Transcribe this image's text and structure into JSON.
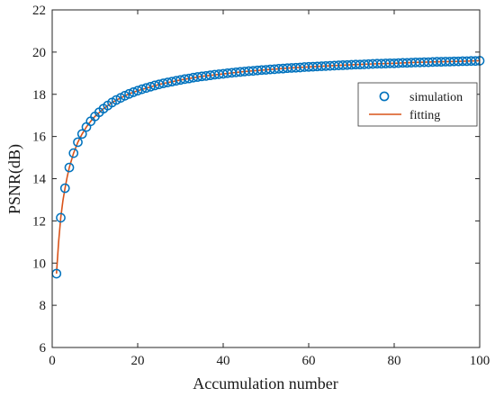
{
  "chart_data": {
    "type": "line",
    "title": "",
    "xlabel": "Accumulation number",
    "ylabel": "PSNR(dB)",
    "xlim": [
      0,
      100
    ],
    "ylim": [
      6,
      22
    ],
    "xticks": [
      0,
      20,
      40,
      60,
      80,
      100
    ],
    "yticks": [
      6,
      8,
      10,
      12,
      14,
      16,
      18,
      20,
      22
    ],
    "grid": false,
    "legend_position": "right",
    "series": [
      {
        "name": "simulation",
        "style": "markers",
        "marker": "circle",
        "color": "#0072BD",
        "x": [
          1,
          2,
          3,
          4,
          5,
          6,
          7,
          8,
          9,
          10,
          11,
          12,
          13,
          14,
          15,
          16,
          17,
          18,
          19,
          20,
          21,
          22,
          23,
          24,
          25,
          26,
          27,
          28,
          29,
          30,
          31,
          32,
          33,
          34,
          35,
          36,
          37,
          38,
          39,
          40,
          41,
          42,
          43,
          44,
          45,
          46,
          47,
          48,
          49,
          50,
          51,
          52,
          53,
          54,
          55,
          56,
          57,
          58,
          59,
          60,
          61,
          62,
          63,
          64,
          65,
          66,
          67,
          68,
          69,
          70,
          71,
          72,
          73,
          74,
          75,
          76,
          77,
          78,
          79,
          80,
          81,
          82,
          83,
          84,
          85,
          86,
          87,
          88,
          89,
          90,
          91,
          92,
          93,
          94,
          95,
          96,
          97,
          98,
          99,
          100
        ],
        "values": [
          9.5,
          12.15,
          13.55,
          14.53,
          15.21,
          15.73,
          16.12,
          16.45,
          16.72,
          16.95,
          17.15,
          17.32,
          17.47,
          17.61,
          17.73,
          17.83,
          17.93,
          18.02,
          18.1,
          18.17,
          18.24,
          18.3,
          18.36,
          18.42,
          18.47,
          18.52,
          18.56,
          18.6,
          18.64,
          18.68,
          18.72,
          18.75,
          18.79,
          18.82,
          18.85,
          18.87,
          18.9,
          18.93,
          18.95,
          18.97,
          19.0,
          19.02,
          19.04,
          19.06,
          19.08,
          19.1,
          19.11,
          19.13,
          19.15,
          19.16,
          19.18,
          19.19,
          19.21,
          19.22,
          19.24,
          19.25,
          19.26,
          19.27,
          19.29,
          19.3,
          19.31,
          19.32,
          19.33,
          19.34,
          19.35,
          19.36,
          19.37,
          19.38,
          19.39,
          19.4,
          19.41,
          19.41,
          19.42,
          19.43,
          19.44,
          19.45,
          19.45,
          19.46,
          19.47,
          19.47,
          19.48,
          19.49,
          19.49,
          19.5,
          19.51,
          19.51,
          19.52,
          19.52,
          19.53,
          19.54,
          19.54,
          19.55,
          19.55,
          19.56,
          19.56,
          19.57,
          19.57,
          19.58,
          19.58,
          19.59
        ]
      },
      {
        "name": "fitting",
        "style": "line",
        "color": "#D95319",
        "x": [
          1,
          1.5,
          2,
          2.5,
          3,
          3.5,
          4,
          5,
          6,
          7,
          8,
          9,
          10,
          12,
          14,
          16,
          18,
          20,
          25,
          30,
          35,
          40,
          45,
          50,
          55,
          60,
          65,
          70,
          75,
          80,
          85,
          90,
          95,
          100
        ],
        "values": [
          9.5,
          11.0,
          12.15,
          12.95,
          13.55,
          14.08,
          14.53,
          15.21,
          15.73,
          16.12,
          16.45,
          16.72,
          16.95,
          17.32,
          17.61,
          17.83,
          18.02,
          18.17,
          18.47,
          18.68,
          18.85,
          18.97,
          19.08,
          19.16,
          19.24,
          19.3,
          19.35,
          19.4,
          19.44,
          19.47,
          19.51,
          19.54,
          19.56,
          19.59
        ]
      }
    ]
  }
}
